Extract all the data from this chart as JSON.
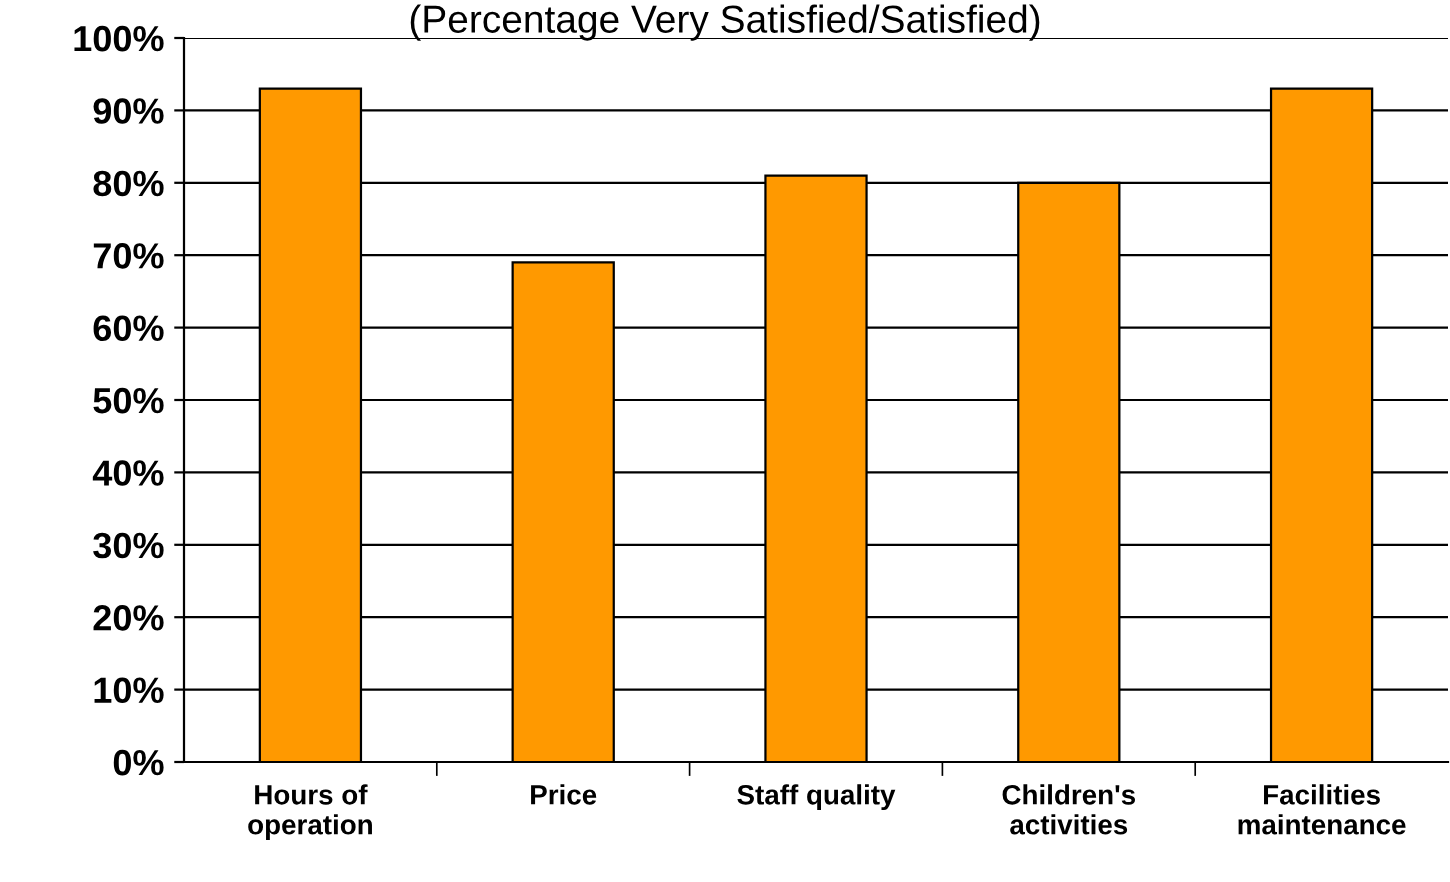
{
  "chart_data": {
    "type": "bar",
    "subtitle": "(Percentage Very Satisfied/Satisfied)",
    "categories": [
      "Hours of\noperation",
      "Price",
      "Staff quality",
      "Children's\nactivities",
      "Facilities\nmaintenance"
    ],
    "values": [
      93,
      69,
      81,
      80,
      93
    ],
    "color": "#ff9900",
    "ylim": [
      0,
      100
    ],
    "yticks": [
      {
        "value": 0,
        "label": "0%"
      },
      {
        "value": 10,
        "label": "10%"
      },
      {
        "value": 20,
        "label": "20%"
      },
      {
        "value": 30,
        "label": "30%"
      },
      {
        "value": 40,
        "label": "40%"
      },
      {
        "value": 50,
        "label": "50%"
      },
      {
        "value": 60,
        "label": "60%"
      },
      {
        "value": 70,
        "label": "70%"
      },
      {
        "value": 80,
        "label": "80%"
      },
      {
        "value": 90,
        "label": "90%"
      },
      {
        "value": 100,
        "label": "100%"
      }
    ],
    "grid": "y"
  }
}
